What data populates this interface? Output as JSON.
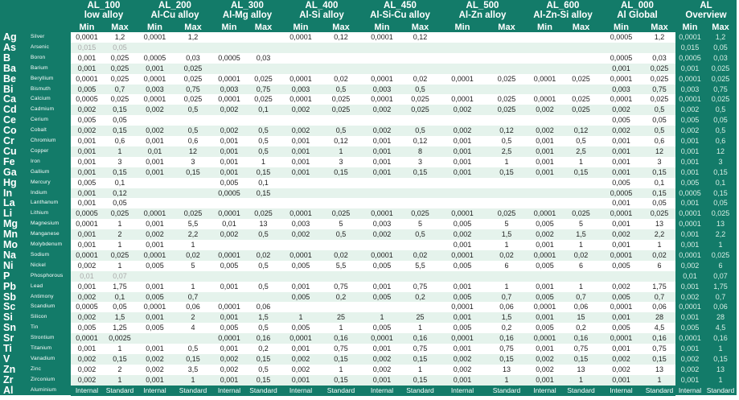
{
  "colors": {
    "header_bg": "#137b69",
    "row_alt": "#e5f3ec",
    "muted_text": "#aaaaaa"
  },
  "groups": [
    {
      "code": "AL_100",
      "name": "low alloy"
    },
    {
      "code": "AL_200",
      "name": "Al-Cu alloy"
    },
    {
      "code": "AL_300",
      "name": "Al-Mg alloy"
    },
    {
      "code": "AL_400",
      "name": "Al-Si alloy"
    },
    {
      "code": "AL_450",
      "name": "Al-Si-Cu alloy"
    },
    {
      "code": "AL_500",
      "name": "Al-Zn alloy"
    },
    {
      "code": "AL_600",
      "name": "Al-Zn-Si alloy"
    },
    {
      "code": "AL_000",
      "name": "Al Global"
    },
    {
      "code": "AL",
      "name": "Overview"
    }
  ],
  "subheaders": {
    "min": "Min",
    "max": "Max"
  },
  "rows": [
    {
      "symbol": "Ag",
      "name": "Silver",
      "values": [
        "0,0001",
        "1,2",
        "0,0001",
        "1,2",
        "",
        "",
        "0,0001",
        "0,12",
        "0,0001",
        "0,12",
        "",
        "",
        "",
        "",
        "0,0005",
        "1,2",
        "0,0001",
        "1,2"
      ]
    },
    {
      "symbol": "As",
      "name": "Arsenic",
      "muted": true,
      "values": [
        "0,015",
        "0,05",
        "",
        "",
        "",
        "",
        "",
        "",
        "",
        "",
        "",
        "",
        "",
        "",
        "",
        "",
        "0,015",
        "0,05"
      ]
    },
    {
      "symbol": "B",
      "name": "Boron",
      "values": [
        "0,001",
        "0,025",
        "0,0005",
        "0,03",
        "0,0005",
        "0,03",
        "",
        "",
        "",
        "",
        "",
        "",
        "",
        "",
        "0,0005",
        "0,03",
        "0,0005",
        "0,03"
      ]
    },
    {
      "symbol": "Ba",
      "name": "Barium",
      "values": [
        "0,001",
        "0,025",
        "0,001",
        "0,025",
        "",
        "",
        "",
        "",
        "",
        "",
        "",
        "",
        "",
        "",
        "0,001",
        "0,025",
        "0,001",
        "0,025"
      ]
    },
    {
      "symbol": "Be",
      "name": "Beryllium",
      "values": [
        "0,0001",
        "0,025",
        "0,0001",
        "0,025",
        "0,0001",
        "0,025",
        "0,0001",
        "0,02",
        "0,0001",
        "0,02",
        "0,0001",
        "0,025",
        "0,0001",
        "0,025",
        "0,0001",
        "0,025",
        "0,0001",
        "0,025"
      ]
    },
    {
      "symbol": "Bi",
      "name": "Bismuth",
      "values": [
        "0,005",
        "0,7",
        "0,003",
        "0,75",
        "0,003",
        "0,75",
        "0,003",
        "0,5",
        "0,003",
        "0,5",
        "",
        "",
        "",
        "",
        "0,003",
        "0,75",
        "0,003",
        "0,75"
      ]
    },
    {
      "symbol": "Ca",
      "name": "Calcium",
      "values": [
        "0,0005",
        "0,025",
        "0,0001",
        "0,025",
        "0,0001",
        "0,025",
        "0,0001",
        "0,025",
        "0,0001",
        "0,025",
        "0,0001",
        "0,025",
        "0,0001",
        "0,025",
        "0,0001",
        "0,025",
        "0,0001",
        "0,025"
      ]
    },
    {
      "symbol": "Cd",
      "name": "Cadmium",
      "values": [
        "0,002",
        "0,15",
        "0,002",
        "0,5",
        "0,002",
        "0,1",
        "0,002",
        "0,025",
        "0,002",
        "0,025",
        "0,002",
        "0,025",
        "0,002",
        "0,025",
        "0,002",
        "0,5",
        "0,002",
        "0,5"
      ]
    },
    {
      "symbol": "Ce",
      "name": "Cerium",
      "values": [
        "0,005",
        "0,05",
        "",
        "",
        "",
        "",
        "",
        "",
        "",
        "",
        "",
        "",
        "",
        "",
        "0,005",
        "0,05",
        "0,005",
        "0,05"
      ]
    },
    {
      "symbol": "Co",
      "name": "Cobalt",
      "values": [
        "0,002",
        "0,15",
        "0,002",
        "0,5",
        "0,002",
        "0,5",
        "0,002",
        "0,5",
        "0,002",
        "0,5",
        "0,002",
        "0,12",
        "0,002",
        "0,12",
        "0,002",
        "0,5",
        "0,002",
        "0,5"
      ]
    },
    {
      "symbol": "Cr",
      "name": "Chromium",
      "values": [
        "0,001",
        "0,6",
        "0,001",
        "0,6",
        "0,001",
        "0,5",
        "0,001",
        "0,12",
        "0,001",
        "0,12",
        "0,001",
        "0,5",
        "0,001",
        "0,5",
        "0,001",
        "0,6",
        "0,001",
        "0,6"
      ]
    },
    {
      "symbol": "Cu",
      "name": "Copper",
      "values": [
        "0,001",
        "1",
        "0,01",
        "12",
        "0,001",
        "0,5",
        "0,001",
        "1",
        "0,001",
        "8",
        "0,001",
        "2,5",
        "0,001",
        "2,5",
        "0,001",
        "12",
        "0,001",
        "12"
      ]
    },
    {
      "symbol": "Fe",
      "name": "Iron",
      "values": [
        "0,001",
        "3",
        "0,001",
        "3",
        "0,001",
        "1",
        "0,001",
        "3",
        "0,001",
        "3",
        "0,001",
        "1",
        "0,001",
        "1",
        "0,001",
        "3",
        "0,001",
        "3"
      ]
    },
    {
      "symbol": "Ga",
      "name": "Gallium",
      "values": [
        "0,001",
        "0,15",
        "0,001",
        "0,15",
        "0,001",
        "0,15",
        "0,001",
        "0,15",
        "0,001",
        "0,15",
        "0,001",
        "0,15",
        "0,001",
        "0,15",
        "0,001",
        "0,15",
        "0,001",
        "0,15"
      ]
    },
    {
      "symbol": "Hg",
      "name": "Mercury",
      "values": [
        "0,005",
        "0,1",
        "",
        "",
        "0,005",
        "0,1",
        "",
        "",
        "",
        "",
        "",
        "",
        "",
        "",
        "0,005",
        "0,1",
        "0,005",
        "0,1"
      ]
    },
    {
      "symbol": "In",
      "name": "Indium",
      "values": [
        "0,001",
        "0,12",
        "",
        "",
        "0,0005",
        "0,15",
        "",
        "",
        "",
        "",
        "",
        "",
        "",
        "",
        "0,0005",
        "0,15",
        "0,0005",
        "0,15"
      ]
    },
    {
      "symbol": "La",
      "name": "Lanthanum",
      "values": [
        "0,001",
        "0,05",
        "",
        "",
        "",
        "",
        "",
        "",
        "",
        "",
        "",
        "",
        "",
        "",
        "0,001",
        "0,05",
        "0,001",
        "0,05"
      ]
    },
    {
      "symbol": "Li",
      "name": "Lithium",
      "values": [
        "0,0005",
        "0,025",
        "0,0001",
        "0,025",
        "0,0001",
        "0,025",
        "0,0001",
        "0,025",
        "0,0001",
        "0,025",
        "0,0001",
        "0,025",
        "0,0001",
        "0,025",
        "0,0001",
        "0,025",
        "0,0001",
        "0,025"
      ]
    },
    {
      "symbol": "Mg",
      "name": "Magnesium",
      "values": [
        "0,0001",
        "1",
        "0,001",
        "5,5",
        "0,01",
        "13",
        "0,003",
        "5",
        "0,003",
        "5",
        "0,005",
        "5",
        "0,005",
        "5",
        "0,001",
        "13",
        "0,0001",
        "13"
      ]
    },
    {
      "symbol": "Mn",
      "name": "Manganese",
      "values": [
        "0,001",
        "2",
        "0,002",
        "2,2",
        "0,002",
        "0,5",
        "0,002",
        "0,5",
        "0,002",
        "0,5",
        "0,002",
        "1,5",
        "0,002",
        "1,5",
        "0,002",
        "2,2",
        "0,001",
        "2,2"
      ]
    },
    {
      "symbol": "Mo",
      "name": "Molybdenum",
      "values": [
        "0,001",
        "1",
        "0,001",
        "1",
        "",
        "",
        "",
        "",
        "",
        "",
        "0,001",
        "1",
        "0,001",
        "1",
        "0,001",
        "1",
        "0,001",
        "1"
      ]
    },
    {
      "symbol": "Na",
      "name": "Sodium",
      "values": [
        "0,0001",
        "0,025",
        "0,0001",
        "0,02",
        "0,0001",
        "0,02",
        "0,0001",
        "0,02",
        "0,0001",
        "0,02",
        "0,0001",
        "0,02",
        "0,0001",
        "0,02",
        "0,0001",
        "0,02",
        "0,0001",
        "0,025"
      ]
    },
    {
      "symbol": "Ni",
      "name": "Nickel",
      "values": [
        "0,002",
        "1",
        "0,005",
        "5",
        "0,005",
        "0,5",
        "0,005",
        "5,5",
        "0,005",
        "5,5",
        "0,005",
        "6",
        "0,005",
        "6",
        "0,005",
        "6",
        "0,002",
        "6"
      ]
    },
    {
      "symbol": "P",
      "name": "Phosphorous",
      "muted": true,
      "values": [
        "0,01",
        "0,07",
        "",
        "",
        "",
        "",
        "",
        "",
        "",
        "",
        "",
        "",
        "",
        "",
        "",
        "",
        "0,01",
        "0,07"
      ]
    },
    {
      "symbol": "Pb",
      "name": "Lead",
      "values": [
        "0,001",
        "1,75",
        "0,001",
        "1",
        "0,001",
        "0,5",
        "0,001",
        "0,75",
        "0,001",
        "0,75",
        "0,001",
        "1",
        "0,001",
        "1",
        "0,002",
        "1,75",
        "0,001",
        "1,75"
      ]
    },
    {
      "symbol": "Sb",
      "name": "Antimony",
      "values": [
        "0,002",
        "0,1",
        "0,005",
        "0,7",
        "",
        "",
        "0,005",
        "0,2",
        "0,005",
        "0,2",
        "0,005",
        "0,7",
        "0,005",
        "0,7",
        "0,005",
        "0,7",
        "0,002",
        "0,7"
      ]
    },
    {
      "symbol": "Sc",
      "name": "Scandium",
      "values": [
        "0,0005",
        "0,05",
        "0,0001",
        "0,06",
        "0,0001",
        "0,06",
        "",
        "",
        "",
        "",
        "0,0001",
        "0,06",
        "0,0001",
        "0,06",
        "0,0001",
        "0,06",
        "0,0001",
        "0,06"
      ]
    },
    {
      "symbol": "Si",
      "name": "Silicon",
      "values": [
        "0,002",
        "1,5",
        "0,001",
        "2",
        "0,001",
        "1,5",
        "1",
        "25",
        "1",
        "25",
        "0,001",
        "1,5",
        "0,001",
        "15",
        "0,001",
        "28",
        "0,001",
        "28"
      ]
    },
    {
      "symbol": "Sn",
      "name": "Tin",
      "values": [
        "0,005",
        "1,25",
        "0,005",
        "4",
        "0,005",
        "0,5",
        "0,005",
        "1",
        "0,005",
        "1",
        "0,005",
        "0,2",
        "0,005",
        "0,2",
        "0,005",
        "4,5",
        "0,005",
        "4,5"
      ]
    },
    {
      "symbol": "Sr",
      "name": "Strontium",
      "values": [
        "0,0001",
        "0,0025",
        "",
        "",
        "0,0001",
        "0,16",
        "0,0001",
        "0,16",
        "0,0001",
        "0,16",
        "0,0001",
        "0,16",
        "0,0001",
        "0,16",
        "0,0001",
        "0,16",
        "0,0001",
        "0,16"
      ]
    },
    {
      "symbol": "Ti",
      "name": "Titanium",
      "values": [
        "0,001",
        "1",
        "0,001",
        "0,5",
        "0,001",
        "0,2",
        "0,001",
        "0,75",
        "0,001",
        "0,75",
        "0,001",
        "0,75",
        "0,001",
        "0,75",
        "0,001",
        "0,75",
        "0,001",
        "1"
      ]
    },
    {
      "symbol": "V",
      "name": "Vanadium",
      "values": [
        "0,002",
        "0,15",
        "0,002",
        "0,15",
        "0,002",
        "0,15",
        "0,002",
        "0,15",
        "0,002",
        "0,15",
        "0,002",
        "0,15",
        "0,002",
        "0,15",
        "0,002",
        "0,15",
        "0,002",
        "0,15"
      ]
    },
    {
      "symbol": "Zn",
      "name": "Zinc",
      "values": [
        "0,002",
        "2",
        "0,002",
        "3,5",
        "0,002",
        "0,5",
        "0,002",
        "1",
        "0,002",
        "1",
        "0,002",
        "13",
        "0,002",
        "13",
        "0,002",
        "13",
        "0,002",
        "13"
      ]
    },
    {
      "symbol": "Zr",
      "name": "Zirconium",
      "values": [
        "0,002",
        "1",
        "0,001",
        "1",
        "0,001",
        "0,15",
        "0,001",
        "0,15",
        "0,001",
        "0,15",
        "0,001",
        "1",
        "0,001",
        "1",
        "0,001",
        "1",
        "0,001",
        "1"
      ]
    },
    {
      "symbol": "Al",
      "name": "Aluminium",
      "footer": true,
      "values": [
        "Internal",
        "Standard",
        "Internal",
        "Standard",
        "Internal",
        "Standard",
        "Internal",
        "Standard",
        "Internal",
        "Standard",
        "Internal",
        "Standard",
        "Internal",
        "Standard",
        "Internal",
        "Standard",
        "Internal",
        "Standard"
      ]
    }
  ]
}
